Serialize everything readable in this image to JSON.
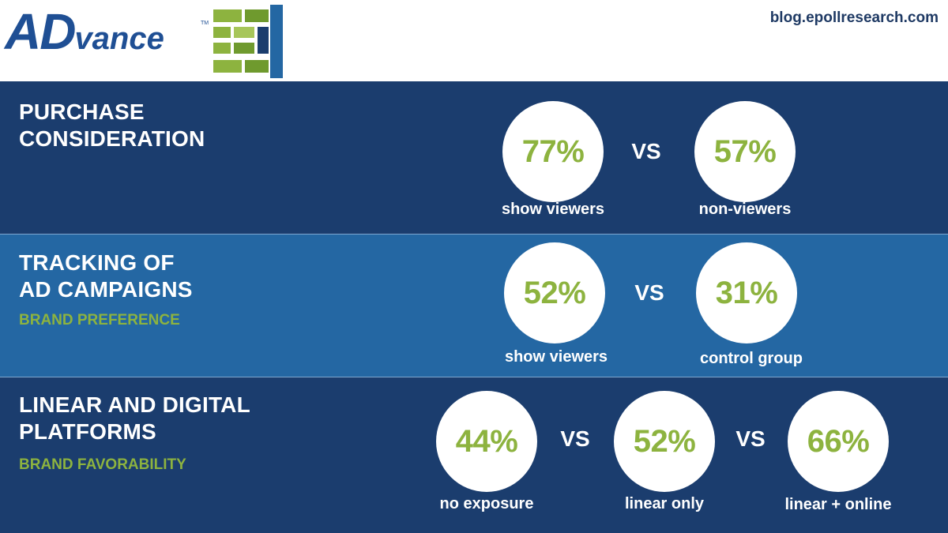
{
  "header": {
    "logo_ad": "AD",
    "logo_vance": "vance",
    "logo_tm": "TM",
    "site_url": "blog.epollresearch.com"
  },
  "colors": {
    "dark_band": "#1b3d6e",
    "light_band": "#2467a3",
    "accent_green": "#8db33f",
    "logo_blue": "#1f4f94"
  },
  "vs_label": "VS",
  "chart_data": [
    {
      "type": "table",
      "title": "PURCHASE CONSIDERATION",
      "subtitle": "",
      "unit": "%",
      "categories": [
        "show viewers",
        "non-viewers"
      ],
      "values": [
        77,
        57
      ],
      "value_labels": [
        "77%",
        "57%"
      ]
    },
    {
      "type": "table",
      "title": "TRACKING OF AD CAMPAIGNS",
      "subtitle": "BRAND PREFERENCE",
      "unit": "%",
      "categories": [
        "show viewers",
        "control group"
      ],
      "values": [
        52,
        31
      ],
      "value_labels": [
        "52%",
        "31%"
      ]
    },
    {
      "type": "table",
      "title": "LINEAR AND DIGITAL PLATFORMS",
      "subtitle": "BRAND FAVORABILITY",
      "unit": "%",
      "categories": [
        "no exposure",
        "linear only",
        "linear + online"
      ],
      "values": [
        44,
        52,
        66
      ],
      "value_labels": [
        "44%",
        "52%",
        "66%"
      ]
    }
  ]
}
